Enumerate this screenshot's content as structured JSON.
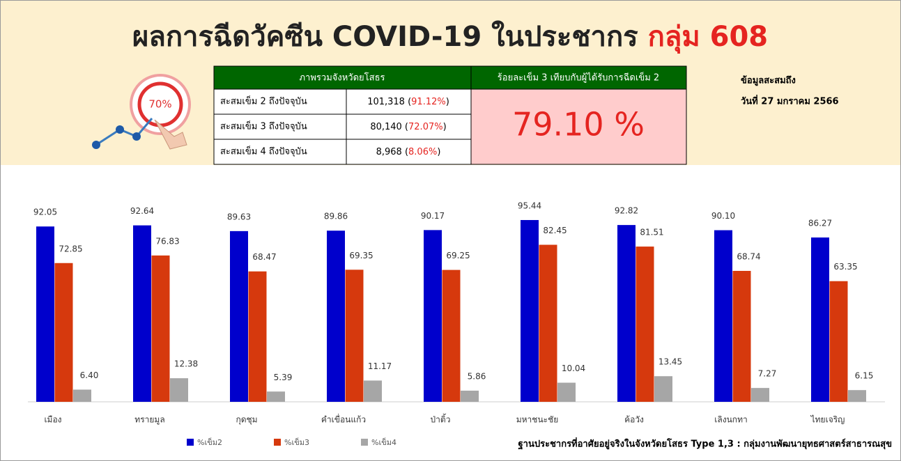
{
  "header": {
    "title": "ผลการฉีดวัคซีน COVID-19 ในประชากร ",
    "title_highlight": "กลุ่ม 608",
    "icon_label": "70%",
    "date_lines": [
      "ข้อมูลสะสมถึง",
      "วันที่ 27 มกราคม 2566"
    ]
  },
  "summary_table": {
    "header": "ภาพรวมจังหวัดยโสธร",
    "rows": [
      [
        "สะสมเข็ม 2 ถึงปัจจุบัน",
        "101,318 (",
        "91.12%",
        ")"
      ],
      [
        "สะสมเข็ม 3 ถึงปัจจุบัน",
        "80,140 (",
        "72.07%",
        ")"
      ],
      [
        "สะสมเข็ม 4 ถึงปัจจุบัน",
        "8,968 (",
        "8.06%",
        ")"
      ]
    ],
    "ratio_header": "ร้อยละเข็ม 3 เทียบกับผู้ได้รับการฉีดเข็ม 2",
    "ratio_value": "79.10 %"
  },
  "chart_data": {
    "type": "bar",
    "categories": [
      "เมือง",
      "ทรายมูล",
      "กุดชุม",
      "คำเขื่อนแก้ว",
      "ป่าติ้ว",
      "มหาชนะชัย",
      "ค้อวัง",
      "เลิงนกทา",
      "ไทยเจริญ"
    ],
    "series": [
      {
        "name": "%เข็ม2",
        "color": "#0000cc",
        "values": [
          92.05,
          92.64,
          89.63,
          89.86,
          90.17,
          95.44,
          92.82,
          90.1,
          86.27
        ],
        "value_labels": [
          "92.05",
          "92.64",
          "89.63",
          "89.86",
          "90.17",
          "95.44",
          "92.82",
          "90.10",
          "86.27"
        ]
      },
      {
        "name": "%เข็ม3",
        "color": "#d6390d",
        "values": [
          72.85,
          76.83,
          68.47,
          69.35,
          69.25,
          82.45,
          81.51,
          68.74,
          63.35
        ],
        "value_labels": [
          "72.85",
          "76.83",
          "68.47",
          "69.35",
          "69.25",
          "82.45",
          "81.51",
          "68.74",
          "63.35"
        ]
      },
      {
        "name": "%เข็ม4",
        "color": "#a6a6a6",
        "values": [
          6.4,
          12.38,
          5.39,
          11.17,
          5.86,
          10.04,
          13.45,
          7.27,
          6.15
        ],
        "value_labels": [
          "6.40",
          "12.38",
          "5.39",
          "11.17",
          "5.86",
          "10.04",
          "13.45",
          "7.27",
          "6.15"
        ]
      }
    ],
    "ylim": [
      0,
      100
    ],
    "footnote": "ฐานประชากรที่อาศัยอยู่จริงในจังหวัดยโสธร Type 1,3 : กลุ่มงานพัฒนายุทธศาสตร์สาธารณสุข"
  }
}
